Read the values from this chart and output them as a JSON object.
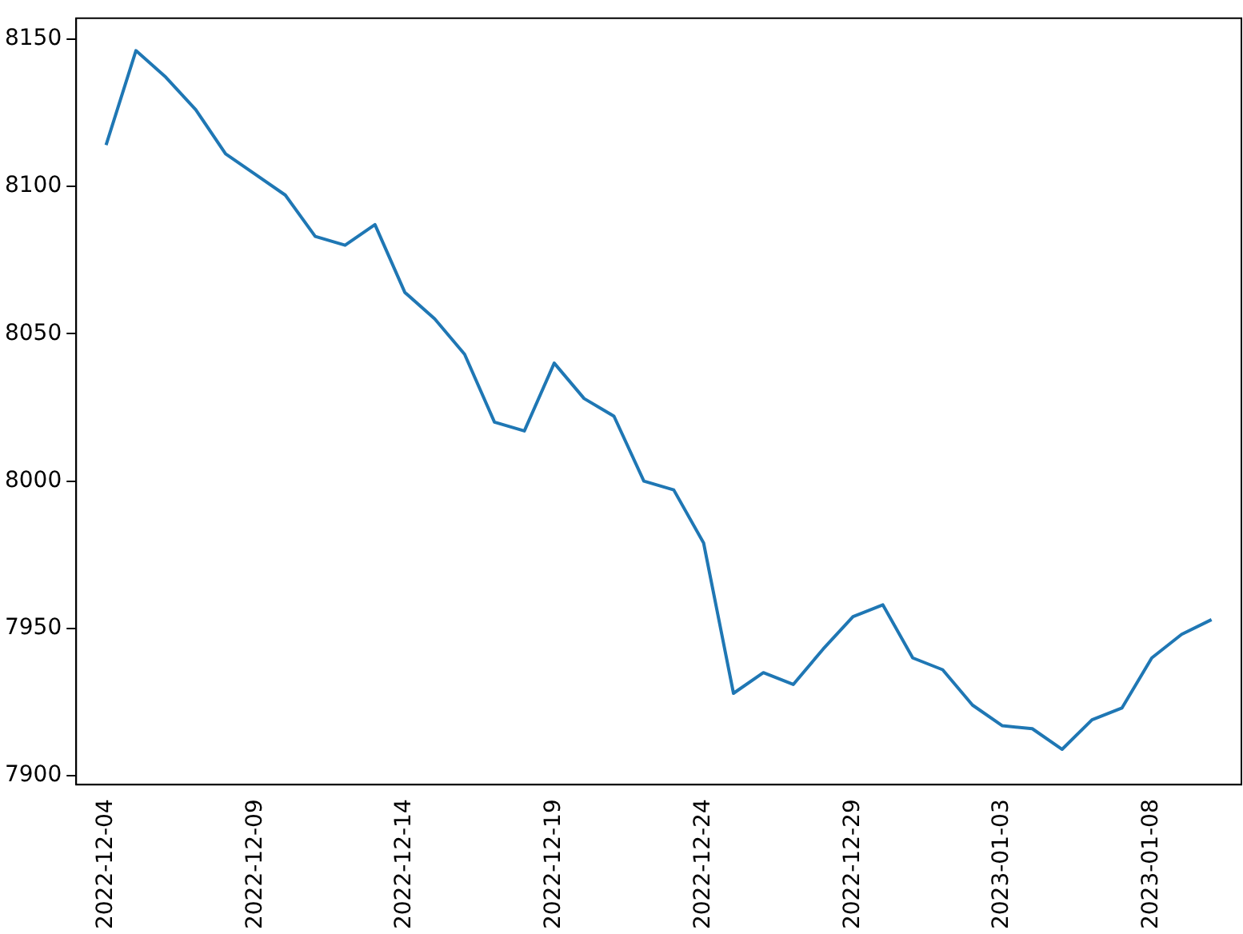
{
  "chart_data": {
    "type": "line",
    "x": [
      "2022-12-04",
      "2022-12-05",
      "2022-12-06",
      "2022-12-07",
      "2022-12-08",
      "2022-12-09",
      "2022-12-10",
      "2022-12-11",
      "2022-12-12",
      "2022-12-13",
      "2022-12-14",
      "2022-12-15",
      "2022-12-16",
      "2022-12-17",
      "2022-12-18",
      "2022-12-19",
      "2022-12-20",
      "2022-12-21",
      "2022-12-22",
      "2022-12-23",
      "2022-12-24",
      "2022-12-25",
      "2022-12-26",
      "2022-12-27",
      "2022-12-28",
      "2022-12-29",
      "2022-12-30",
      "2022-12-31",
      "2023-01-01",
      "2023-01-02",
      "2023-01-03",
      "2023-01-04",
      "2023-01-05",
      "2023-01-06",
      "2023-01-07",
      "2023-01-08",
      "2023-01-09",
      "2023-01-10"
    ],
    "series": [
      {
        "color": "#1f77b4",
        "values": [
          8114,
          8146,
          8137,
          8126,
          8111,
          8104,
          8097,
          8083,
          8080,
          8087,
          8064,
          8055,
          8043,
          8020,
          8017,
          8040,
          8028,
          8022,
          8000,
          7997,
          7979,
          7928,
          7935,
          7931,
          7943,
          7954,
          7958,
          7940,
          7936,
          7924,
          7917,
          7916,
          7909,
          7919,
          7923,
          7940,
          7948,
          7953
        ]
      }
    ],
    "xlim": [
      "2022-12-03",
      "2023-01-11"
    ],
    "xticks": [
      "2022-12-04",
      "2022-12-09",
      "2022-12-14",
      "2022-12-19",
      "2022-12-24",
      "2022-12-29",
      "2023-01-03",
      "2023-01-08"
    ],
    "ylim": [
      7897,
      8157
    ],
    "yticks": [
      7900,
      7950,
      8000,
      8050,
      8100,
      8150
    ],
    "grid": false,
    "legend": false,
    "marker": "none",
    "line_style": "solid"
  }
}
